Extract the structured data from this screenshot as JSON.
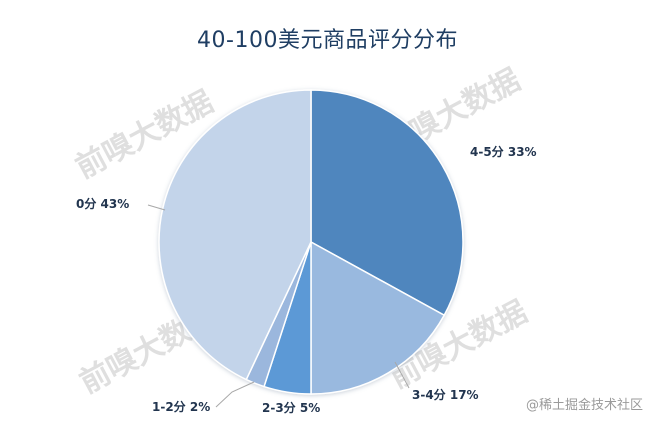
{
  "chart_data": {
    "type": "pie",
    "title": "40-100美元商品评分分布",
    "slices": [
      {
        "label": "4-5分",
        "value": 33,
        "pct_text": "33%",
        "color": "#4f86be"
      },
      {
        "label": "3-4分",
        "value": 17,
        "pct_text": "17%",
        "color": "#99b9df"
      },
      {
        "label": "2-3分",
        "value": 5,
        "pct_text": "5%",
        "color": "#5b99d6"
      },
      {
        "label": "1-2分",
        "value": 2,
        "pct_text": "2%",
        "color": "#9bb7dd"
      },
      {
        "label": "0分",
        "value": 43,
        "pct_text": "43%",
        "color": "#c3d4ea"
      }
    ],
    "legend": "none"
  },
  "watermark": {
    "text": "前嗅大数据"
  },
  "credit": {
    "text": "@稀土掘金技术社区"
  }
}
